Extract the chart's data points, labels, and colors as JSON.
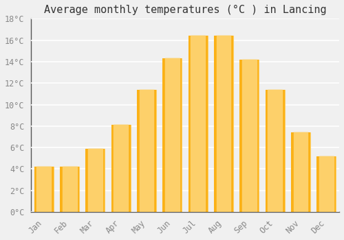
{
  "title": "Average monthly temperatures (°C ) in Lancing",
  "months": [
    "Jan",
    "Feb",
    "Mar",
    "Apr",
    "May",
    "Jun",
    "Jul",
    "Aug",
    "Sep",
    "Oct",
    "Nov",
    "Dec"
  ],
  "temperatures": [
    4.2,
    4.2,
    5.9,
    8.1,
    11.4,
    14.3,
    16.4,
    16.4,
    14.2,
    11.4,
    7.4,
    5.2
  ],
  "bar_color_face": "#FBB116",
  "bar_color_light": "#FDD06A",
  "ylim": [
    0,
    18
  ],
  "yticks": [
    0,
    2,
    4,
    6,
    8,
    10,
    12,
    14,
    16,
    18
  ],
  "ytick_labels": [
    "0°C",
    "2°C",
    "4°C",
    "6°C",
    "8°C",
    "10°C",
    "12°C",
    "14°C",
    "16°C",
    "18°C"
  ],
  "background_color": "#f0f0f0",
  "plot_bg_color": "#f0f0f0",
  "grid_color": "#ffffff",
  "title_fontsize": 11,
  "tick_fontsize": 8.5,
  "tick_font_color": "#888888",
  "spine_color": "#555555",
  "figsize": [
    5.0,
    3.5
  ],
  "dpi": 100
}
